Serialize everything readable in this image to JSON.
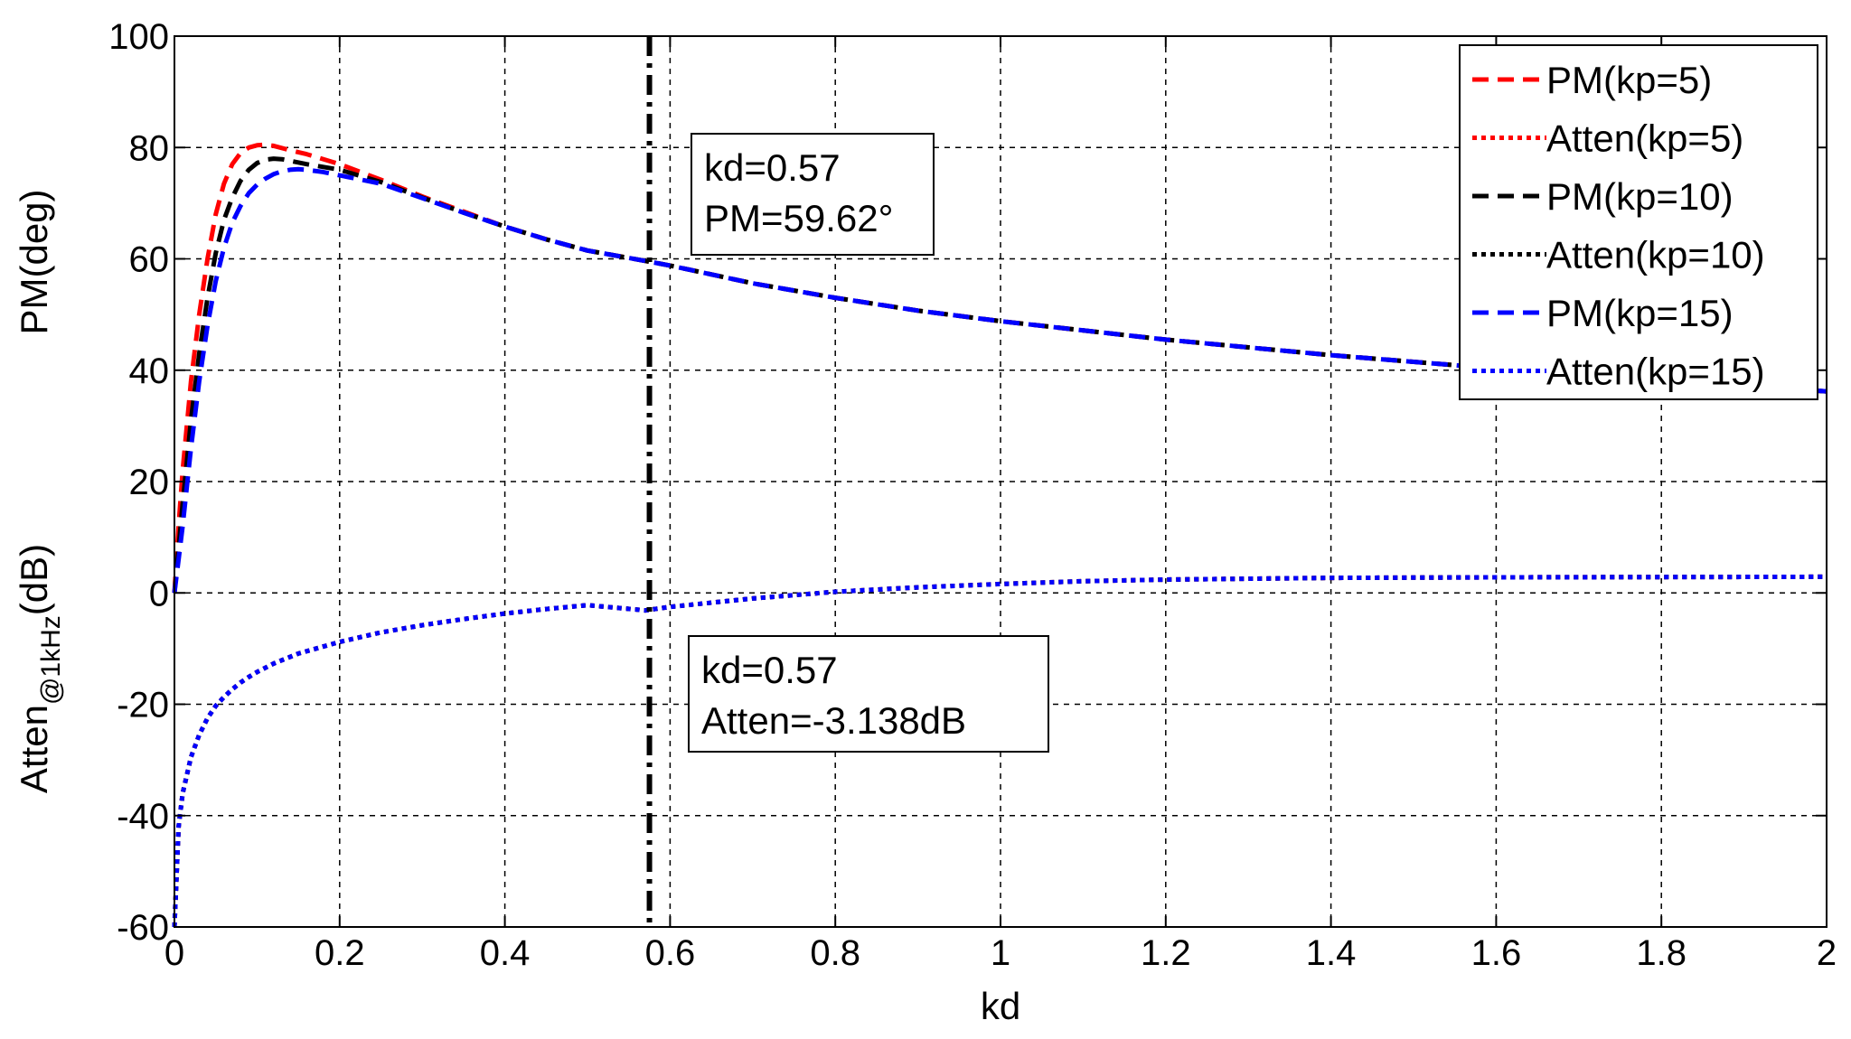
{
  "chart_data": {
    "type": "line",
    "xlabel": "kd",
    "ylabel": {
      "upper": "PM(deg)",
      "lower_main": "Atten",
      "lower_sub": "@1kHz",
      "lower_unit": "(dB)"
    },
    "xlim": [
      0,
      2
    ],
    "ylim": [
      -60,
      100
    ],
    "grid": true,
    "legend_position": "top-right",
    "x_ticks": [
      "0",
      "0.2",
      "0.4",
      "0.6",
      "0.8",
      "1",
      "1.2",
      "1.4",
      "1.6",
      "1.8",
      "2"
    ],
    "y_ticks": [
      "-60",
      "-40",
      "-20",
      "0",
      "20",
      "40",
      "60",
      "80",
      "100"
    ],
    "series": [
      {
        "name": "PM(kp=5)",
        "color": "#ff0000",
        "style": "dashed",
        "x": [
          0,
          0.005,
          0.01,
          0.02,
          0.03,
          0.04,
          0.05,
          0.06,
          0.07,
          0.08,
          0.09,
          0.1,
          0.11,
          0.12,
          0.14,
          0.16,
          0.2,
          0.25,
          0.3,
          0.35,
          0.4,
          0.45,
          0.5,
          0.57,
          0.6,
          0.7,
          0.8,
          0.9,
          1.0,
          1.2,
          1.4,
          1.6,
          1.8,
          2.0
        ],
        "y": [
          0,
          12,
          22,
          38,
          50,
          60,
          68,
          73.5,
          77,
          79,
          80,
          80.4,
          80.5,
          80.3,
          79.5,
          78.8,
          77,
          74.2,
          71.2,
          68.5,
          65.8,
          63.5,
          61.5,
          59.62,
          58.8,
          55.6,
          53,
          50.7,
          48.8,
          45.5,
          42.7,
          40.3,
          38.2,
          36.2
        ]
      },
      {
        "name": "Atten(kp=5)",
        "color": "#ff0000",
        "style": "dotted",
        "x": [
          0,
          0.005,
          0.01,
          0.02,
          0.03,
          0.04,
          0.05,
          0.06,
          0.07,
          0.08,
          0.09,
          0.1,
          0.12,
          0.15,
          0.2,
          0.25,
          0.3,
          0.35,
          0.4,
          0.45,
          0.5,
          0.57,
          0.6,
          0.7,
          0.8,
          0.9,
          1.0,
          1.1,
          1.2,
          1.4,
          1.6,
          1.8,
          2.0
        ],
        "y": [
          -60,
          -42,
          -36,
          -29.5,
          -25.5,
          -22.5,
          -20.3,
          -18.7,
          -17.3,
          -16.1,
          -15.1,
          -14.2,
          -12.7,
          -10.9,
          -8.8,
          -7.1,
          -5.8,
          -4.7,
          -3.7,
          -2.9,
          -2.2,
          -3.14,
          -2.5,
          -1.0,
          0.2,
          1.0,
          1.6,
          2.1,
          2.4,
          2.7,
          2.8,
          2.85,
          2.9
        ]
      },
      {
        "name": "PM(kp=10)",
        "color": "#000000",
        "style": "dashed",
        "x": [
          0,
          0.005,
          0.01,
          0.02,
          0.03,
          0.04,
          0.05,
          0.06,
          0.07,
          0.08,
          0.09,
          0.1,
          0.11,
          0.12,
          0.13,
          0.14,
          0.16,
          0.2,
          0.25,
          0.3,
          0.35,
          0.4,
          0.45,
          0.5,
          0.57,
          0.6,
          0.7,
          0.8,
          0.9,
          1.0,
          1.2,
          1.4,
          1.6,
          1.8,
          2.0
        ],
        "y": [
          0,
          8,
          16,
          31,
          43,
          53,
          61,
          67,
          71,
          74,
          76,
          77.2,
          77.8,
          78,
          77.9,
          77.6,
          77,
          76,
          73.8,
          71,
          68.3,
          65.8,
          63.5,
          61.5,
          59.62,
          58.8,
          55.6,
          53,
          50.7,
          48.8,
          45.5,
          42.7,
          40.3,
          38.2,
          36.2
        ]
      },
      {
        "name": "Atten(kp=10)",
        "color": "#000000",
        "style": "dotted",
        "x": [
          0,
          0.005,
          0.01,
          0.02,
          0.03,
          0.04,
          0.05,
          0.06,
          0.07,
          0.08,
          0.09,
          0.1,
          0.12,
          0.15,
          0.2,
          0.25,
          0.3,
          0.35,
          0.4,
          0.45,
          0.5,
          0.57,
          0.6,
          0.7,
          0.8,
          0.9,
          1.0,
          1.1,
          1.2,
          1.4,
          1.6,
          1.8,
          2.0
        ],
        "y": [
          -60,
          -42,
          -36,
          -29.5,
          -25.5,
          -22.5,
          -20.3,
          -18.7,
          -17.3,
          -16.1,
          -15.1,
          -14.2,
          -12.7,
          -10.9,
          -8.8,
          -7.1,
          -5.8,
          -4.7,
          -3.7,
          -2.9,
          -2.2,
          -3.14,
          -2.5,
          -1.0,
          0.2,
          1.0,
          1.6,
          2.1,
          2.4,
          2.7,
          2.8,
          2.85,
          2.9
        ]
      },
      {
        "name": "PM(kp=15)",
        "color": "#0000ff",
        "style": "dashed",
        "x": [
          0,
          0.005,
          0.01,
          0.02,
          0.03,
          0.04,
          0.05,
          0.06,
          0.07,
          0.08,
          0.09,
          0.1,
          0.11,
          0.12,
          0.13,
          0.14,
          0.15,
          0.16,
          0.18,
          0.2,
          0.25,
          0.3,
          0.35,
          0.4,
          0.45,
          0.5,
          0.57,
          0.6,
          0.7,
          0.8,
          0.9,
          1.0,
          1.2,
          1.4,
          1.6,
          1.8,
          2.0
        ],
        "y": [
          0,
          6,
          12,
          26,
          38,
          48,
          56,
          62,
          66.5,
          69.5,
          71.8,
          73.3,
          74.4,
          75.2,
          75.7,
          76,
          76.1,
          76,
          75.6,
          75,
          73.5,
          70.9,
          68.3,
          65.8,
          63.5,
          61.5,
          59.62,
          58.8,
          55.6,
          53,
          50.7,
          48.8,
          45.5,
          42.7,
          40.3,
          38.2,
          36.2
        ]
      },
      {
        "name": "Atten(kp=15)",
        "color": "#0000ff",
        "style": "dotted",
        "x": [
          0,
          0.005,
          0.01,
          0.02,
          0.03,
          0.04,
          0.05,
          0.06,
          0.07,
          0.08,
          0.09,
          0.1,
          0.12,
          0.15,
          0.2,
          0.25,
          0.3,
          0.35,
          0.4,
          0.45,
          0.5,
          0.57,
          0.6,
          0.7,
          0.8,
          0.9,
          1.0,
          1.1,
          1.2,
          1.4,
          1.6,
          1.8,
          2.0
        ],
        "y": [
          -60,
          -42,
          -36,
          -29.5,
          -25.5,
          -22.5,
          -20.3,
          -18.7,
          -17.3,
          -16.1,
          -15.1,
          -14.2,
          -12.7,
          -10.9,
          -8.8,
          -7.1,
          -5.8,
          -4.7,
          -3.7,
          -2.9,
          -2.2,
          -3.14,
          -2.5,
          -1.0,
          0.2,
          1.0,
          1.6,
          2.1,
          2.4,
          2.7,
          2.8,
          2.85,
          2.9
        ]
      }
    ],
    "vertical_marker": {
      "x": 0.575,
      "color": "#000000",
      "style": "dash-dot"
    },
    "annotations": [
      {
        "lines": [
          "kd=0.57",
          "PM=59.62°"
        ]
      },
      {
        "lines": [
          "kd=0.57",
          "Atten=-3.138dB"
        ]
      }
    ]
  }
}
